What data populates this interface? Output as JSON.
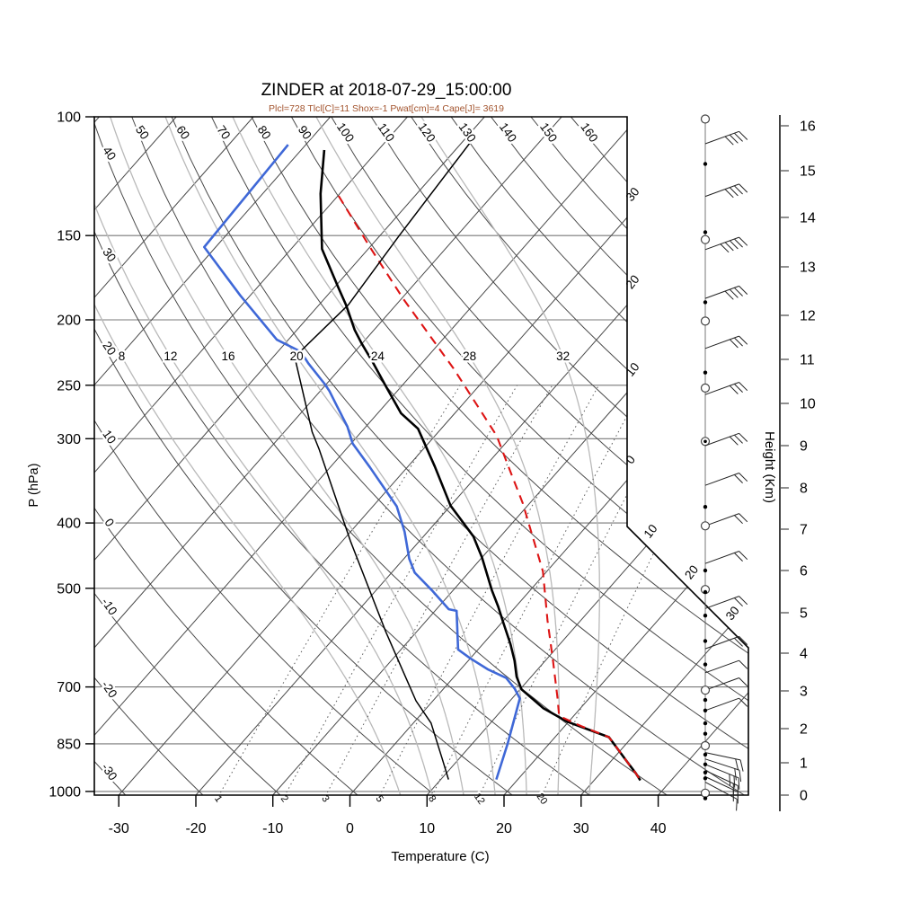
{
  "chart_data": {
    "type": "line",
    "diagram": "skew-t-log-p-sounding",
    "title": "ZINDER at 2018-07-29_15:00:00",
    "subtitle": "Plcl=728 Tlcl[C]=11 Shox=-1 Pwat[cm]=4 Cape[J]= 3619",
    "x_axis": {
      "label": "Temperature (C)",
      "ticks": [
        -30,
        -20,
        -10,
        0,
        10,
        20,
        30,
        40
      ]
    },
    "y_axis": {
      "label": "P (hPa)",
      "scale": "log",
      "ticks": [
        100,
        150,
        200,
        250,
        300,
        400,
        500,
        700,
        850,
        1000
      ]
    },
    "y2_axis": {
      "label": "Height (Km)",
      "ticks": [
        0,
        1,
        2,
        3,
        4,
        5,
        6,
        7,
        8,
        9,
        10,
        11,
        12,
        13,
        14,
        15,
        16
      ]
    },
    "series": [
      {
        "name": "temperature",
        "color": "#000000",
        "style": "solid",
        "width": 2.6,
        "points": [
          [
            112,
            -77
          ],
          [
            130,
            -72.5
          ],
          [
            157,
            -66
          ],
          [
            179,
            -59.5
          ],
          [
            190,
            -56.5
          ],
          [
            207,
            -52.5
          ],
          [
            217,
            -50
          ],
          [
            231,
            -46.5
          ],
          [
            251,
            -42
          ],
          [
            275,
            -37
          ],
          [
            290,
            -33
          ],
          [
            330,
            -26.5
          ],
          [
            377,
            -20
          ],
          [
            419,
            -13.5
          ],
          [
            450,
            -10
          ],
          [
            503,
            -5
          ],
          [
            532,
            -2.3
          ],
          [
            562,
            0.2
          ],
          [
            605,
            3.6
          ],
          [
            640,
            6
          ],
          [
            676,
            8.1
          ],
          [
            706,
            10.2
          ],
          [
            753,
            15.2
          ],
          [
            788,
            19.8
          ],
          [
            831,
            27
          ],
          [
            900,
            31.9
          ],
          [
            940,
            34.6
          ],
          [
            963,
            36
          ]
        ]
      },
      {
        "name": "dewpoint",
        "color": "#3f68d7",
        "style": "solid",
        "width": 2.6,
        "points": [
          [
            110,
            -82.3
          ],
          [
            156,
            -81.5
          ],
          [
            184,
            -71.3
          ],
          [
            214,
            -61.5
          ],
          [
            223,
            -57
          ],
          [
            232,
            -54.7
          ],
          [
            249,
            -50.2
          ],
          [
            255,
            -48.8
          ],
          [
            269,
            -46
          ],
          [
            288,
            -42.4
          ],
          [
            305,
            -39.8
          ],
          [
            331,
            -34.8
          ],
          [
            378,
            -26.9
          ],
          [
            412,
            -23
          ],
          [
            452,
            -19.3
          ],
          [
            474,
            -17
          ],
          [
            503,
            -12.8
          ],
          [
            537,
            -8.4
          ],
          [
            540,
            -7.2
          ],
          [
            616,
            -2.6
          ],
          [
            635,
            0
          ],
          [
            659,
            3.5
          ],
          [
            679,
            6.9
          ],
          [
            704,
            9.2
          ],
          [
            728,
            11
          ],
          [
            850,
            14.6
          ],
          [
            960,
            17.2
          ]
        ]
      },
      {
        "name": "parcel-path",
        "color": "#dd1414",
        "style": "dashed",
        "width": 2.1,
        "points": [
          [
            131,
            -69.9
          ],
          [
            156,
            -60
          ],
          [
            186,
            -49.8
          ],
          [
            236,
            -35.3
          ],
          [
            297,
            -22
          ],
          [
            331,
            -16.8
          ],
          [
            374,
            -10.9
          ],
          [
            472,
            -0.5
          ],
          [
            558,
            5.7
          ],
          [
            640,
            11
          ],
          [
            680,
            13.3
          ],
          [
            728,
            15.9
          ],
          [
            773,
            18.1
          ],
          [
            800,
            22.1
          ],
          [
            831,
            27
          ],
          [
            900,
            31.9
          ],
          [
            940,
            34.6
          ],
          [
            963,
            36
          ]
        ]
      },
      {
        "name": "aux-thin-black-curve",
        "color": "#000000",
        "style": "solid",
        "width": 1.5,
        "points": [
          [
            107,
            -59
          ],
          [
            150,
            -57.5
          ],
          [
            190,
            -56.2
          ],
          [
            227,
            -57.2
          ],
          [
            293,
            -46.4
          ],
          [
            311,
            -43.5
          ],
          [
            425,
            -29
          ],
          [
            580,
            -14
          ],
          [
            663,
            -7.3
          ],
          [
            734,
            -2.2
          ],
          [
            792,
            2.3
          ],
          [
            898,
            8
          ],
          [
            960,
            11
          ]
        ]
      }
    ],
    "background": {
      "isotherms": {
        "min": -110,
        "max": 40,
        "step": 10
      },
      "dry_adiabats_theta_c": [
        -30,
        -20,
        -10,
        0,
        10,
        20,
        30,
        40,
        50,
        60,
        70,
        80,
        90,
        100,
        110,
        120,
        130,
        140,
        150,
        160
      ],
      "dry_adiabat_left_labels": [
        "40",
        "30",
        "20",
        "10",
        "0",
        "-10",
        "-20",
        "-30"
      ],
      "dry_adiabat_top_labels": [
        "50",
        "60",
        "70",
        "80",
        "90",
        "100",
        "110",
        "120",
        "130",
        "140",
        "150",
        "160"
      ],
      "moist_adiabats_c": [
        8,
        12,
        16,
        20,
        24,
        28,
        32
      ],
      "mixing_ratio_g_kg": [
        1,
        2,
        3,
        5,
        8,
        12,
        20
      ],
      "isotherm_edge_labels_right": [
        {
          "t": -30,
          "label": "30"
        },
        {
          "t": -20,
          "label": "20"
        },
        {
          "t": -10,
          "label": "10"
        },
        {
          "t": 0,
          "label": "0"
        }
      ],
      "isotherm_edge_labels_diagonal": [
        {
          "t": 10,
          "label": "10"
        },
        {
          "t": 20,
          "label": "20"
        },
        {
          "t": 30,
          "label": "30"
        }
      ]
    }
  },
  "wind_column": {
    "description": "wind barbs / level markers at right of plot",
    "levels": [
      {
        "km": 16.15,
        "marker": "circle",
        "barbs": 0
      },
      {
        "km": 15.6,
        "marker": "none",
        "barbs": 4
      },
      {
        "km": 15.15,
        "marker": "dot",
        "barbs": 0
      },
      {
        "km": 14.45,
        "marker": "none",
        "barbs": 4
      },
      {
        "km": 13.7,
        "marker": "dot",
        "barbs": 0
      },
      {
        "km": 13.55,
        "marker": "circle",
        "barbs": 0
      },
      {
        "km": 13.35,
        "marker": "none",
        "barbs": 5
      },
      {
        "km": 12.35,
        "marker": "none",
        "barbs": 4
      },
      {
        "km": 12.27,
        "marker": "dot",
        "barbs": 0
      },
      {
        "km": 11.87,
        "marker": "circle",
        "barbs": 0
      },
      {
        "km": 11.25,
        "marker": "none",
        "barbs": 3
      },
      {
        "km": 10.7,
        "marker": "dot",
        "barbs": 0
      },
      {
        "km": 10.35,
        "marker": "circle",
        "barbs": 0
      },
      {
        "km": 10.2,
        "marker": "none",
        "barbs": 3
      },
      {
        "km": 9.1,
        "marker": "circledot",
        "barbs": 0
      },
      {
        "km": 9.0,
        "marker": "none",
        "barbs": 3
      },
      {
        "km": 8.06,
        "marker": "none",
        "barbs": 2
      },
      {
        "km": 7.54,
        "marker": "dot",
        "barbs": 0
      },
      {
        "km": 7.08,
        "marker": "circle",
        "barbs": 2
      },
      {
        "km": 6.17,
        "marker": "none",
        "barbs": 2
      },
      {
        "km": 6.0,
        "marker": "dot",
        "barbs": 0
      },
      {
        "km": 5.55,
        "marker": "circle",
        "barbs": 0
      },
      {
        "km": 5.49,
        "marker": "dot",
        "barbs": 0
      },
      {
        "km": 5.1,
        "marker": "none",
        "barbs": 2
      },
      {
        "km": 4.93,
        "marker": "dot",
        "barbs": 0
      },
      {
        "km": 4.3,
        "marker": "dot",
        "barbs": 0
      },
      {
        "km": 4.11,
        "marker": "none",
        "barbs": 2
      },
      {
        "km": 3.7,
        "marker": "dot",
        "barbs": 0
      },
      {
        "km": 3.48,
        "marker": "none",
        "barbs": 1
      },
      {
        "km": 3.02,
        "marker": "circle",
        "barbs": 1
      },
      {
        "km": 2.76,
        "marker": "dot",
        "barbs": 0
      },
      {
        "km": 2.48,
        "marker": "dot",
        "barbs": 1
      },
      {
        "km": 2.14,
        "marker": "dot",
        "barbs": 0
      },
      {
        "km": 1.85,
        "marker": "dot",
        "barbs": 0
      },
      {
        "km": 1.5,
        "marker": "circle",
        "barbs": 0
      },
      {
        "km": 1.3,
        "marker": "none",
        "barbs": 2,
        "ang": 12
      },
      {
        "km": 1.24,
        "marker": "dot",
        "barbs": 0
      },
      {
        "km": 1.11,
        "marker": "none",
        "barbs": 2,
        "ang": 18
      },
      {
        "km": 0.95,
        "marker": "dot",
        "barbs": 3,
        "ang": 22
      },
      {
        "km": 0.76,
        "marker": "none",
        "barbs": 2,
        "ang": 25
      },
      {
        "km": 0.7,
        "marker": "dot",
        "barbs": 0
      },
      {
        "km": 0.57,
        "marker": "none",
        "barbs": 2,
        "ang": 25
      },
      {
        "km": 0.52,
        "marker": "dot",
        "barbs": 0
      },
      {
        "km": 0.4,
        "marker": "none",
        "barbs": 1,
        "ang": 28
      },
      {
        "km": 0.06,
        "marker": "circle",
        "barbs": 0
      },
      {
        "km": -0.1,
        "marker": "dot",
        "barbs": 0
      }
    ]
  },
  "colors": {
    "temperature": "#000000",
    "dewpoint": "#3f68d7",
    "parcel": "#dd1414",
    "subtitle": "#a3542e",
    "grid_dark": "#4a4a4a",
    "grid_pressure": "#787878",
    "moist_adiabat": "#b9b9b9",
    "mixing_ratio": "#5a5a5a"
  }
}
